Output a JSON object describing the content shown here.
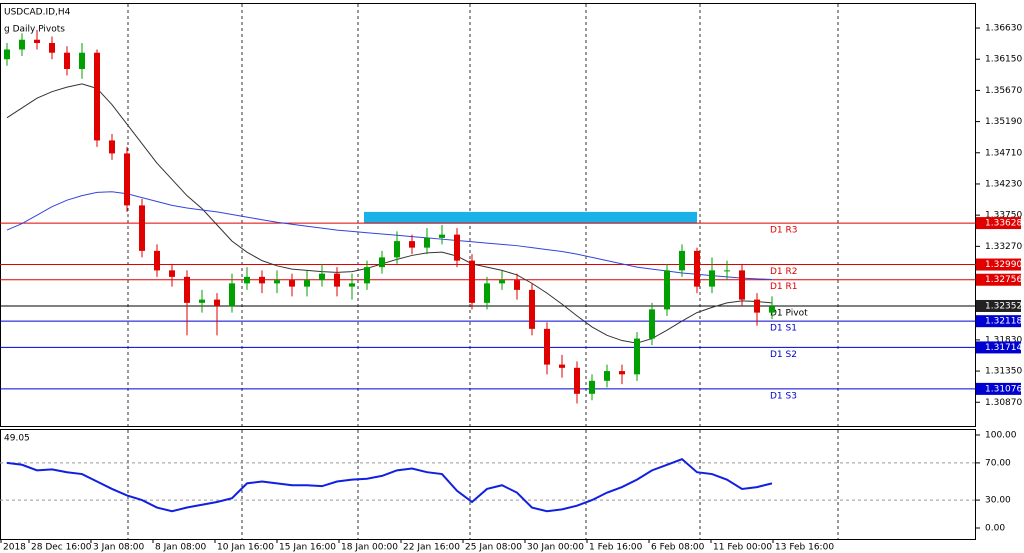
{
  "chart_data": {
    "type": "candlestick",
    "title": "USDCAD.ID,H4",
    "subtitle": "g Daily Pivots",
    "up_color": "#00a000",
    "down_color": "#e00000",
    "open": [
      1.3615,
      1.363,
      1.3645,
      1.364,
      1.3625,
      1.36,
      1.3625,
      1.349,
      1.347,
      1.339,
      1.332,
      1.329,
      1.328,
      1.324,
      1.3245,
      1.3235,
      1.327,
      1.328,
      1.327,
      1.3275,
      1.3265,
      1.3275,
      1.3285,
      1.3265,
      1.327,
      1.3295,
      1.331,
      1.3335,
      1.3325,
      1.334,
      1.3345,
      1.3305,
      1.324,
      1.327,
      1.3275,
      1.326,
      1.32,
      1.3145,
      1.314,
      1.31,
      1.312,
      1.3135,
      1.313,
      1.3185,
      1.323,
      1.329,
      1.332,
      1.3265,
      1.329,
      1.329,
      1.3245,
      1.3225
    ],
    "high": [
      1.364,
      1.3655,
      1.366,
      1.365,
      1.3635,
      1.364,
      1.363,
      1.35,
      1.348,
      1.34,
      1.333,
      1.33,
      1.329,
      1.326,
      1.3255,
      1.3285,
      1.3295,
      1.329,
      1.329,
      1.3285,
      1.329,
      1.33,
      1.3295,
      1.3285,
      1.3305,
      1.332,
      1.335,
      1.3345,
      1.3355,
      1.336,
      1.3355,
      1.3315,
      1.328,
      1.329,
      1.3285,
      1.327,
      1.321,
      1.316,
      1.315,
      1.313,
      1.3145,
      1.3145,
      1.3195,
      1.324,
      1.33,
      1.333,
      1.3325,
      1.331,
      1.3305,
      1.33,
      1.3255,
      1.325
    ],
    "low": [
      1.3605,
      1.362,
      1.363,
      1.3615,
      1.359,
      1.3585,
      1.348,
      1.346,
      1.338,
      1.331,
      1.328,
      1.3265,
      1.319,
      1.3225,
      1.319,
      1.3225,
      1.326,
      1.3255,
      1.3255,
      1.325,
      1.325,
      1.3265,
      1.325,
      1.3245,
      1.326,
      1.3285,
      1.33,
      1.3315,
      1.3315,
      1.333,
      1.3295,
      1.323,
      1.323,
      1.326,
      1.3245,
      1.319,
      1.313,
      1.3125,
      1.3085,
      1.309,
      1.311,
      1.3115,
      1.312,
      1.3175,
      1.322,
      1.328,
      1.3255,
      1.3255,
      1.3275,
      1.3235,
      1.3205,
      1.3215
    ],
    "close": [
      1.363,
      1.3645,
      1.364,
      1.3625,
      1.36,
      1.3625,
      1.349,
      1.347,
      1.339,
      1.332,
      1.329,
      1.328,
      1.324,
      1.3245,
      1.3235,
      1.327,
      1.328,
      1.327,
      1.3275,
      1.3265,
      1.3275,
      1.3285,
      1.3265,
      1.327,
      1.3295,
      1.331,
      1.3335,
      1.3325,
      1.334,
      1.3345,
      1.3305,
      1.324,
      1.327,
      1.3275,
      1.326,
      1.32,
      1.3145,
      1.314,
      1.31,
      1.312,
      1.3135,
      1.313,
      1.3185,
      1.323,
      1.329,
      1.332,
      1.3265,
      1.329,
      1.329,
      1.3245,
      1.3225,
      1.3235
    ],
    "ma": [
      {
        "color": "#333333",
        "values": [
          1.3525,
          1.354,
          1.3555,
          1.3565,
          1.3572,
          1.3577,
          1.357,
          1.3545,
          1.3515,
          1.3485,
          1.3455,
          1.343,
          1.3405,
          1.3385,
          1.336,
          1.3335,
          1.3318,
          1.3305,
          1.3297,
          1.3292,
          1.329,
          1.3288,
          1.3287,
          1.3288,
          1.3293,
          1.33,
          1.3307,
          1.3313,
          1.3317,
          1.3318,
          1.3312,
          1.33,
          1.3295,
          1.329,
          1.3283,
          1.327,
          1.3255,
          1.3238,
          1.322,
          1.3203,
          1.319,
          1.3182,
          1.3178,
          1.3185,
          1.3198,
          1.3212,
          1.3225,
          1.3233,
          1.324,
          1.3243,
          1.3242,
          1.324
        ]
      },
      {
        "color": "#3344dd",
        "values": [
          1.3352,
          1.3362,
          1.3375,
          1.3388,
          1.3398,
          1.3405,
          1.341,
          1.3411,
          1.3408,
          1.3402,
          1.3396,
          1.339,
          1.3386,
          1.3383,
          1.338,
          1.3376,
          1.3372,
          1.3368,
          1.3364,
          1.3361,
          1.3358,
          1.3355,
          1.3352,
          1.335,
          1.3348,
          1.3346,
          1.3344,
          1.3342,
          1.334,
          1.3338,
          1.3336,
          1.3334,
          1.3332,
          1.333,
          1.3328,
          1.3325,
          1.3322,
          1.3319,
          1.3315,
          1.331,
          1.3305,
          1.33,
          1.3295,
          1.3292,
          1.3289,
          1.3286,
          1.3284,
          1.3282,
          1.328,
          1.3278,
          1.3277,
          1.3276
        ]
      }
    ],
    "zone": {
      "low": 1.3362,
      "high": 1.338,
      "color": "#1ab0e8"
    },
    "ylim": [
      1.3052,
      1.37
    ],
    "yticks": [
      {
        "value": 1.3663,
        "label": "1.36630"
      },
      {
        "value": 1.3615,
        "label": "1.36150"
      },
      {
        "value": 1.3567,
        "label": "1.35670"
      },
      {
        "value": 1.3519,
        "label": "1.35190"
      },
      {
        "value": 1.3471,
        "label": "1.34710"
      },
      {
        "value": 1.3423,
        "label": "1.34230"
      },
      {
        "value": 1.3375,
        "label": "1.33750"
      },
      {
        "value": 1.3327,
        "label": "1.33270"
      },
      {
        "value": 1.3183,
        "label": "1.31830"
      },
      {
        "value": 1.3135,
        "label": "1.31350"
      },
      {
        "value": 1.3087,
        "label": "1.30870"
      }
    ],
    "pivots": [
      {
        "name": "D1 R3",
        "color": "#e00000",
        "price": {
          "value": 1.33628,
          "label": "1.33628"
        }
      },
      {
        "name": "D1 R2",
        "color": "#e00000",
        "price": {
          "value": 1.3299,
          "label": "1.32990"
        }
      },
      {
        "name": "D1 R1",
        "color": "#e00000",
        "price": {
          "value": 1.32756,
          "label": "1.32756"
        }
      },
      {
        "name": "D1 Pivot",
        "color": "#000000",
        "price": {
          "value": 1.32352
        }
      },
      {
        "name": "D1 S1",
        "color": "#0000d0",
        "price": {
          "value": 1.32118,
          "label": "1.32118"
        }
      },
      {
        "name": "D1 S2",
        "color": "#0000d0",
        "price": {
          "value": 1.31714,
          "label": "1.31714"
        }
      },
      {
        "name": "D1 S3",
        "color": "#0000d0",
        "price": {
          "value": 1.31076,
          "label": "1.31076"
        }
      }
    ],
    "current_price": {
      "value": 1.32352,
      "label": "1.32352"
    },
    "x_labels": [
      "2018",
      "28 Dec 16:00",
      "3 Jan 08:00",
      "8 Jan 08:00",
      "10 Jan 16:00",
      "15 Jan 16:00",
      "18 Jan 00:00",
      "22 Jan 16:00",
      "25 Jan 08:00",
      "30 Jan 00:00",
      "1 Feb 16:00",
      "6 Feb 08:00",
      "11 Feb 00:00",
      "13 Feb 16:00"
    ],
    "oscillator": {
      "label": "49.05",
      "color": "#1020e0",
      "values": [
        70,
        68,
        62,
        63,
        60,
        58,
        50,
        42,
        35,
        30,
        22,
        18,
        22,
        25,
        28,
        32,
        48,
        50,
        48,
        46,
        46,
        45,
        50,
        52,
        53,
        56,
        62,
        64,
        60,
        58,
        40,
        28,
        42,
        46,
        38,
        22,
        18,
        20,
        24,
        30,
        38,
        44,
        52,
        62,
        68,
        74,
        60,
        58,
        52,
        42,
        44,
        48
      ],
      "ylim": [
        0,
        100
      ],
      "yticks": [
        {
          "value": 100,
          "label": "100.00"
        },
        {
          "value": 70,
          "label": "70.00"
        },
        {
          "value": 30,
          "label": "30.00"
        },
        {
          "value": 0,
          "label": "0.00"
        }
      ],
      "levels": [
        70,
        30
      ]
    }
  }
}
